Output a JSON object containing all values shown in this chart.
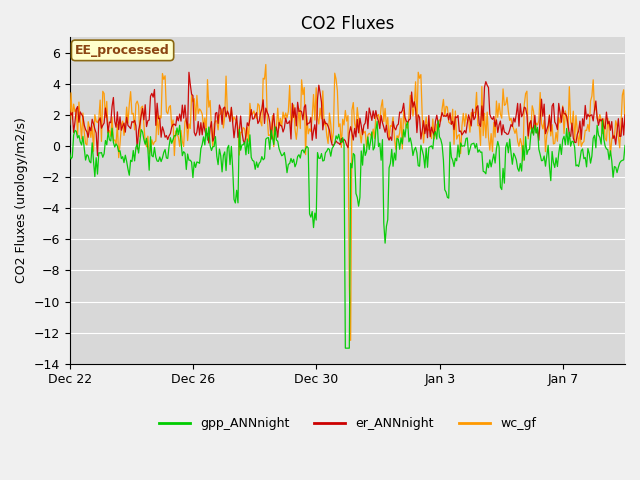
{
  "title": "CO2 Fluxes",
  "ylabel": "CO2 Fluxes (urology/m2/s)",
  "ylim": [
    -14,
    7
  ],
  "yticks": [
    -14,
    -12,
    -10,
    -8,
    -6,
    -4,
    -2,
    0,
    2,
    4,
    6
  ],
  "n_points": 420,
  "annotation": "EE_processed",
  "legend_entries": [
    "gpp_ANNnight",
    "er_ANNnight",
    "wc_gf"
  ],
  "colors": {
    "gpp": "#00cc00",
    "er": "#cc0000",
    "wc": "#ff9900"
  },
  "title_fontsize": 12,
  "label_fontsize": 9,
  "tick_fontsize": 9
}
